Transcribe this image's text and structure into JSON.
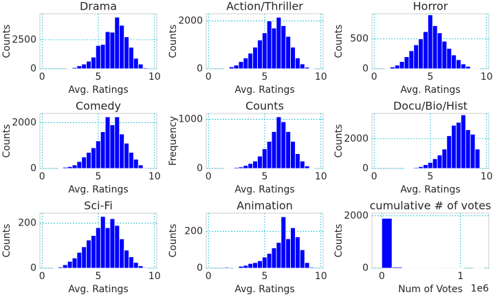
{
  "chart_data": [
    {
      "type": "histogram",
      "title": "Drama",
      "xlabel": "Avg. Ratings",
      "ylabel": "Counts",
      "color": "#0000ff",
      "grid": true,
      "bins": [
        1.0,
        1.42,
        1.84,
        2.26,
        2.68,
        3.1,
        3.52,
        3.94,
        4.36,
        4.78,
        5.2,
        5.62,
        6.04,
        6.46,
        6.88,
        7.3,
        7.72,
        8.14,
        8.56,
        8.98,
        9.4
      ],
      "counts": [
        0,
        0,
        0,
        30,
        100,
        250,
        400,
        650,
        1000,
        2000,
        2100,
        3200,
        3150,
        4450,
        3750,
        2750,
        1850,
        900,
        400,
        80
      ],
      "xlim": [
        -0.2,
        10.2
      ],
      "ylim": [
        0,
        4750
      ],
      "xticks": [
        0,
        5,
        10
      ],
      "yticks": [
        0,
        2500
      ]
    },
    {
      "type": "histogram",
      "title": "Action/Thriller",
      "xlabel": "Avg. Ratings",
      "ylabel": "Counts",
      "color": "#0000ff",
      "grid": true,
      "bins": [
        1.0,
        1.42,
        1.84,
        2.26,
        2.68,
        3.1,
        3.52,
        3.94,
        4.36,
        4.78,
        5.2,
        5.62,
        6.04,
        6.46,
        6.88,
        7.3,
        7.72,
        8.14,
        8.56,
        8.98,
        9.4
      ],
      "counts": [
        0,
        10,
        80,
        150,
        300,
        450,
        650,
        900,
        1200,
        1500,
        2000,
        1700,
        2150,
        1800,
        1350,
        900,
        450,
        200,
        60,
        10
      ],
      "xlim": [
        -0.2,
        10.2
      ],
      "ylim": [
        0,
        2300
      ],
      "xticks": [
        0,
        5,
        10
      ],
      "yticks": [
        0,
        2000
      ]
    },
    {
      "type": "histogram",
      "title": "Horror",
      "xlabel": "Avg. Ratings",
      "ylabel": "Counts",
      "color": "#0000ff",
      "grid": true,
      "bins": [
        1.0,
        1.42,
        1.84,
        2.26,
        2.68,
        3.1,
        3.52,
        3.94,
        4.36,
        4.78,
        5.2,
        5.62,
        6.04,
        6.46,
        6.88,
        7.3,
        7.72,
        8.14,
        8.56,
        8.98,
        9.4
      ],
      "counts": [
        10,
        30,
        60,
        120,
        200,
        300,
        400,
        500,
        620,
        900,
        720,
        600,
        460,
        340,
        230,
        150,
        80,
        40,
        10,
        5
      ],
      "xlim": [
        -0.2,
        10.2
      ],
      "ylim": [
        0,
        920
      ],
      "xticks": [
        0,
        5,
        10
      ],
      "yticks": [
        0,
        500
      ]
    },
    {
      "type": "histogram",
      "title": "Comedy",
      "xlabel": "Avg. Ratings",
      "ylabel": "Counts",
      "color": "#0000ff",
      "grid": true,
      "bins": [
        1.0,
        1.42,
        1.84,
        2.26,
        2.68,
        3.1,
        3.52,
        3.94,
        4.36,
        4.78,
        5.2,
        5.62,
        6.04,
        6.46,
        6.88,
        7.3,
        7.72,
        8.14,
        8.56,
        8.98,
        9.4
      ],
      "counts": [
        0,
        10,
        50,
        80,
        150,
        300,
        500,
        700,
        900,
        1200,
        1600,
        2250,
        1900,
        2250,
        1500,
        1100,
        700,
        400,
        150,
        30
      ],
      "xlim": [
        -0.2,
        10.2
      ],
      "ylim": [
        0,
        2400
      ],
      "xticks": [
        0,
        5,
        10
      ],
      "yticks": [
        0,
        2000
      ]
    },
    {
      "type": "histogram",
      "title": "Counts",
      "xlabel": "Avg. Ratings",
      "ylabel": "Frequency",
      "color": "#0000ff",
      "grid": true,
      "bins": [
        1.0,
        1.42,
        1.84,
        2.26,
        2.68,
        3.1,
        3.52,
        3.94,
        4.36,
        4.78,
        5.2,
        5.62,
        6.04,
        6.46,
        6.88,
        7.3,
        7.72,
        8.14,
        8.56,
        8.98,
        9.4
      ],
      "counts": [
        0,
        5,
        10,
        20,
        30,
        60,
        100,
        150,
        250,
        400,
        550,
        750,
        1050,
        950,
        750,
        550,
        300,
        150,
        50,
        10
      ],
      "xlim": [
        -0.2,
        10.2
      ],
      "ylim": [
        0,
        1120
      ],
      "xticks": [
        0,
        5,
        10
      ],
      "yticks": [
        0,
        1000
      ]
    },
    {
      "type": "histogram",
      "title": "Docu/Bio/Hist",
      "xlabel": "Avg. Ratings",
      "ylabel": "Counts",
      "color": "#0000ff",
      "grid": true,
      "bins": [
        1.0,
        1.42,
        1.84,
        2.26,
        2.68,
        3.1,
        3.52,
        3.94,
        4.36,
        4.78,
        5.2,
        5.62,
        6.04,
        6.46,
        6.88,
        7.3,
        7.72,
        8.14,
        8.56,
        8.98,
        9.4
      ],
      "counts": [
        0,
        0,
        0,
        0,
        10,
        30,
        60,
        120,
        250,
        400,
        650,
        900,
        1300,
        2200,
        2900,
        3100,
        3600,
        2600,
        2300,
        1300
      ],
      "xlim": [
        -0.2,
        10.2
      ],
      "ylim": [
        0,
        3700
      ],
      "xticks": [
        0,
        5,
        10
      ],
      "yticks": [
        0,
        2000
      ]
    },
    {
      "type": "histogram",
      "title": "Sci-Fi",
      "xlabel": "Avg. Ratings",
      "ylabel": "Counts",
      "color": "#0000ff",
      "grid": true,
      "bins": [
        1.0,
        1.42,
        1.84,
        2.26,
        2.68,
        3.1,
        3.52,
        3.94,
        4.36,
        4.78,
        5.2,
        5.62,
        6.04,
        6.46,
        6.88,
        7.3,
        7.72,
        8.14,
        8.56,
        8.98,
        9.4
      ],
      "counts": [
        2,
        5,
        15,
        30,
        45,
        70,
        95,
        125,
        145,
        180,
        230,
        180,
        220,
        190,
        130,
        80,
        50,
        25,
        10,
        3
      ],
      "xlim": [
        -0.2,
        10.2
      ],
      "ylim": [
        0,
        245
      ],
      "xticks": [
        0,
        5,
        10
      ],
      "yticks": [
        0,
        200
      ]
    },
    {
      "type": "histogram",
      "title": "Animation",
      "xlabel": "Avg. Ratings",
      "ylabel": "Counts",
      "color": "#0000ff",
      "grid": true,
      "bins": [
        1.0,
        1.42,
        1.84,
        2.26,
        2.68,
        3.1,
        3.52,
        3.94,
        4.36,
        4.78,
        5.2,
        5.62,
        6.04,
        6.46,
        6.88,
        7.3,
        7.72,
        8.14,
        8.56,
        8.98,
        9.4
      ],
      "counts": [
        0,
        5,
        0,
        3,
        10,
        15,
        25,
        30,
        40,
        60,
        80,
        110,
        140,
        280,
        160,
        220,
        170,
        100,
        30,
        5
      ],
      "xlim": [
        -0.2,
        10.2
      ],
      "ylim": [
        0,
        300
      ],
      "xticks": [
        0,
        5,
        10
      ],
      "yticks": [
        0,
        200
      ]
    },
    {
      "type": "histogram",
      "title": "cumulative # of votes",
      "xlabel": "Num of Votes",
      "ylabel": "Counts",
      "color": "#0000ff",
      "grid": true,
      "bins": [
        0,
        130000,
        260000,
        390000,
        520000,
        650000,
        780000,
        910000,
        1040000,
        1170000,
        1300000
      ],
      "counts": [
        1900,
        40,
        10,
        5,
        3,
        2,
        1,
        1,
        0,
        1
      ],
      "xlim": [
        -125000,
        1360000
      ],
      "ylim": [
        0,
        2100
      ],
      "xticks": [
        0,
        {
          "value": 1000000,
          "label": "1"
        }
      ],
      "yticks": [
        0,
        2000
      ],
      "x_offset_label": "1e6"
    }
  ]
}
